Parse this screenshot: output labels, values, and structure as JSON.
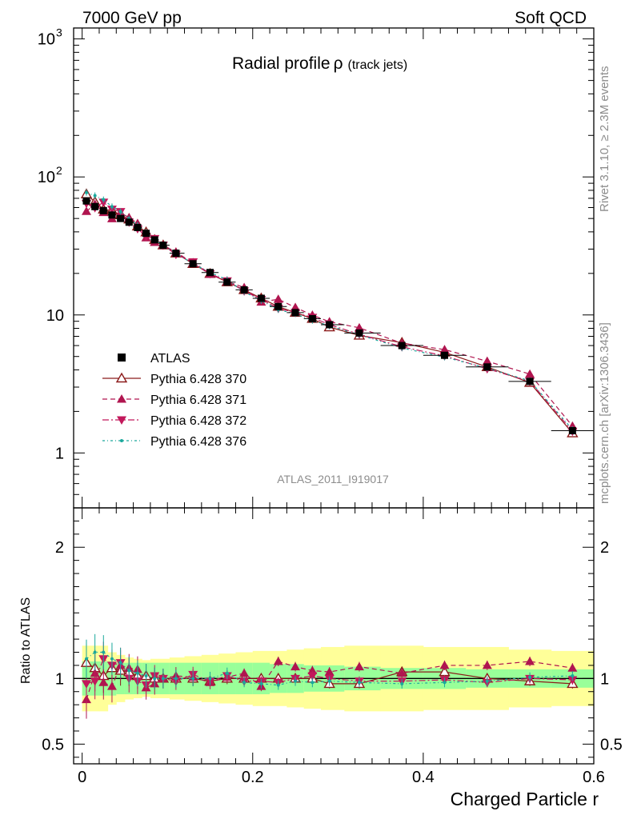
{
  "header": {
    "left": "7000 GeV pp",
    "right": "Soft QCD"
  },
  "side_labels": {
    "rivet": "Rivet 3.1.10, ≥ 2.3M events",
    "mcplots": "mcplots.cern.ch [arXiv:1306.3436]"
  },
  "plot_title": {
    "main": "Radial profile",
    "symbol": "ρ",
    "suffix": "(track jets)"
  },
  "analysis_id": "ATLAS_2011_I919017",
  "ratio_ylabel": "Ratio to ATLAS",
  "xlabel": "Charged Particle r",
  "legend": [
    {
      "label": "ATLAS"
    },
    {
      "label": "Pythia 6.428 370"
    },
    {
      "label": "Pythia 6.428 371"
    },
    {
      "label": "Pythia 6.428 372"
    },
    {
      "label": "Pythia 6.428 376"
    }
  ],
  "chart_data": {
    "type": "line",
    "main_panel": {
      "yscale": "log",
      "ylim": [
        0.4,
        1200
      ],
      "yticks": [
        "1",
        "10",
        "10",
        "10"
      ],
      "ytick_exp": [
        "",
        "",
        "2",
        "3"
      ]
    },
    "ratio_panel": {
      "ylim": [
        0.35,
        2.3
      ],
      "yticks": [
        "0.5",
        "1",
        "2"
      ]
    },
    "xlim": [
      -0.01,
      0.6
    ],
    "xticks": [
      "0",
      "0.2",
      "0.4",
      "0.6"
    ],
    "x": [
      0.005,
      0.015,
      0.025,
      0.035,
      0.045,
      0.055,
      0.065,
      0.075,
      0.085,
      0.095,
      0.11,
      0.13,
      0.15,
      0.17,
      0.19,
      0.21,
      0.23,
      0.25,
      0.27,
      0.29,
      0.325,
      0.375,
      0.425,
      0.475,
      0.525,
      0.575
    ],
    "data": {
      "name": "ATLAS",
      "y": [
        67,
        61,
        57,
        53,
        50,
        47,
        43,
        39,
        35,
        32,
        28,
        23.5,
        20.3,
        17.3,
        15.2,
        13.2,
        11.5,
        10.4,
        9.4,
        8.5,
        7.4,
        6.0,
        5.1,
        4.2,
        3.3,
        1.45
      ]
    },
    "band_inner": [
      0.13,
      0.13,
      0.13,
      0.13,
      0.12,
      0.12,
      0.12,
      0.12,
      0.12,
      0.12,
      0.12,
      0.12,
      0.12,
      0.12,
      0.12,
      0.12,
      0.11,
      0.11,
      0.1,
      0.1,
      0.09,
      0.08,
      0.08,
      0.07,
      0.07,
      0.07
    ],
    "band_outer": [
      0.25,
      0.25,
      0.25,
      0.2,
      0.18,
      0.16,
      0.15,
      0.14,
      0.15,
      0.15,
      0.16,
      0.17,
      0.18,
      0.19,
      0.2,
      0.21,
      0.21,
      0.22,
      0.23,
      0.24,
      0.25,
      0.25,
      0.24,
      0.24,
      0.22,
      0.21
    ],
    "series": [
      {
        "name": "Pythia 6.428 370",
        "color": "#8b1a1a",
        "style": "solid",
        "marker": "open-triangle-up",
        "ratio": [
          1.12,
          1.08,
          1.02,
          1.08,
          1.06,
          1.05,
          1.02,
          1.02,
          1.0,
          1.0,
          1.0,
          1.0,
          0.98,
          1.0,
          1.0,
          1.0,
          1.0,
          1.0,
          1.0,
          0.96,
          0.96,
          1.05,
          1.05,
          1.0,
          0.98,
          0.96
        ]
      },
      {
        "name": "Pythia 6.428 371",
        "color": "#b0154f",
        "style": "dashed",
        "marker": "filled-triangle-up",
        "ratio": [
          0.84,
          1.04,
          0.97,
          0.94,
          1.1,
          1.08,
          1.07,
          0.93,
          0.96,
          1.0,
          1.02,
          1.01,
          0.97,
          1.01,
          1.04,
          0.94,
          1.13,
          1.09,
          1.06,
          1.05,
          1.09,
          1.04,
          1.1,
          1.1,
          1.13,
          1.08
        ]
      },
      {
        "name": "Pythia 6.428 372",
        "color": "#c2185b",
        "style": "dashdot",
        "marker": "filled-triangle-down",
        "ratio": [
          0.96,
          0.98,
          1.15,
          1.1,
          1.12,
          1.0,
          0.98,
          0.95,
          1.02,
          1.0,
          0.98,
          1.03,
          0.98,
          1.02,
          0.98,
          0.98,
          0.97,
          1.0,
          1.02,
          1.0,
          0.98,
          0.98,
          0.99,
          0.97,
          1.0,
          0.99
        ]
      },
      {
        "name": "Pythia 6.428 376",
        "color": "#1aa89c",
        "style": "dotdash",
        "marker": "dot",
        "ratio": [
          1.15,
          1.2,
          1.2,
          1.15,
          1.12,
          1.06,
          1.04,
          1.02,
          1.0,
          1.0,
          1.0,
          1.0,
          1.0,
          1.04,
          0.97,
          0.96,
          0.95,
          0.98,
          0.97,
          0.98,
          0.97,
          0.96,
          0.97,
          0.98,
          1.01,
          1.02
        ]
      }
    ]
  }
}
